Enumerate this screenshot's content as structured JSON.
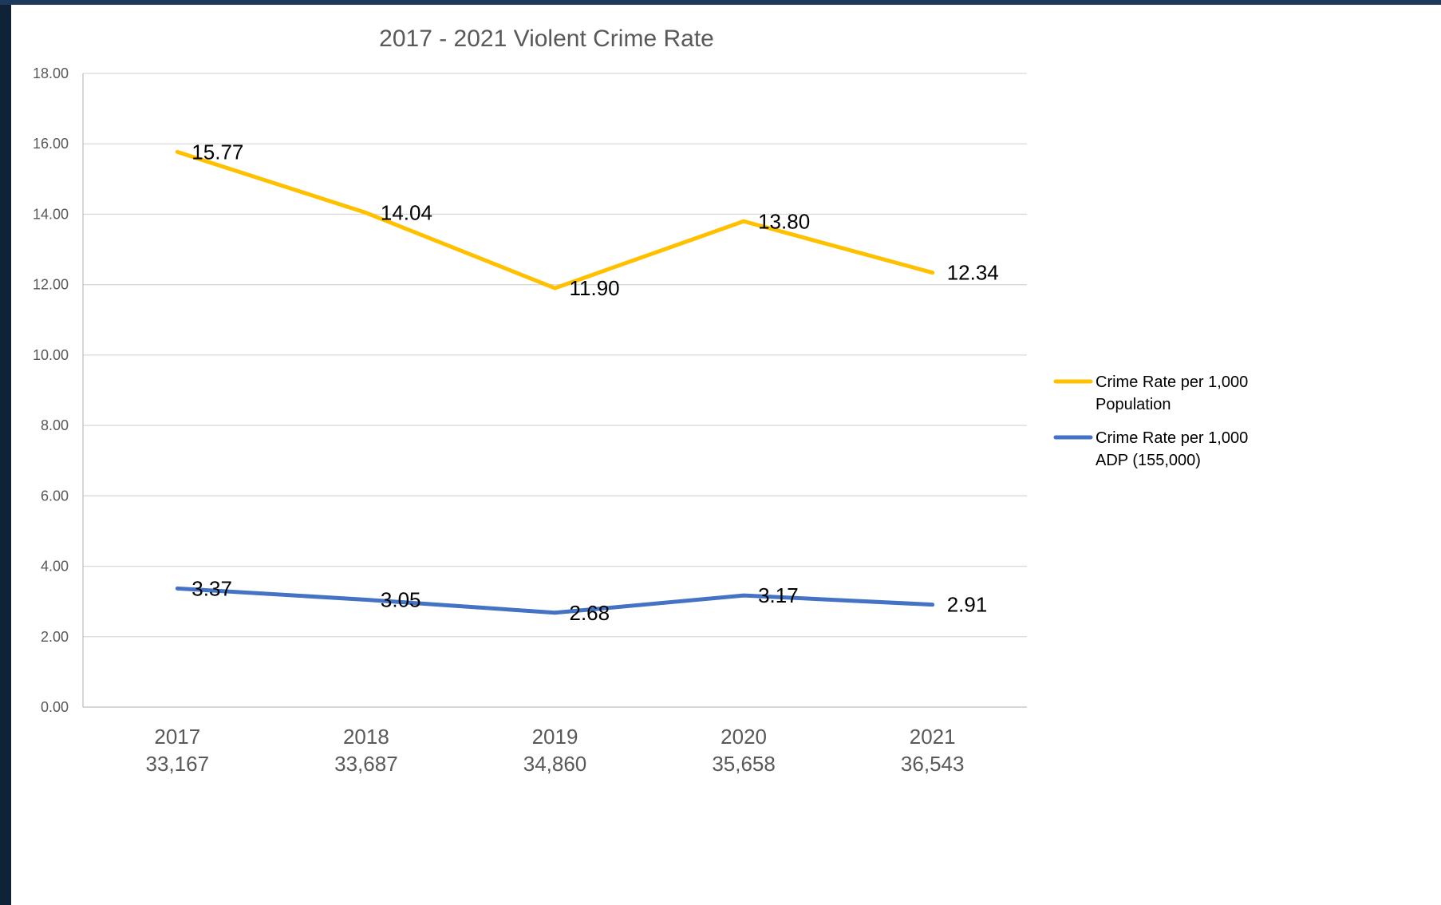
{
  "chart_data": {
    "type": "line",
    "title": "2017 - 2021 Violent Crime Rate",
    "categories": [
      {
        "year": "2017",
        "population": "33,167"
      },
      {
        "year": "2018",
        "population": "33,687"
      },
      {
        "year": "2019",
        "population": "34,860"
      },
      {
        "year": "2020",
        "population": "35,658"
      },
      {
        "year": "2021",
        "population": "36,543"
      }
    ],
    "y_ticks": [
      "0.00",
      "2.00",
      "4.00",
      "6.00",
      "8.00",
      "10.00",
      "12.00",
      "14.00",
      "16.00",
      "18.00"
    ],
    "ylim": [
      0,
      18
    ],
    "grid": true,
    "legend_position": "right",
    "series": [
      {
        "name_lines": [
          "Crime Rate per 1,000",
          "Population"
        ],
        "color": "#ffc000",
        "values": [
          15.77,
          14.04,
          11.9,
          13.8,
          12.34
        ],
        "labels": [
          "15.77",
          "14.04",
          "11.90",
          "13.80",
          "12.34"
        ]
      },
      {
        "name_lines": [
          "Crime Rate per 1,000",
          "ADP (155,000)"
        ],
        "color": "#4472c4",
        "values": [
          3.37,
          3.05,
          2.68,
          3.17,
          2.91
        ],
        "labels": [
          "3.37",
          "3.05",
          "2.68",
          "3.17",
          "2.91"
        ]
      }
    ]
  }
}
